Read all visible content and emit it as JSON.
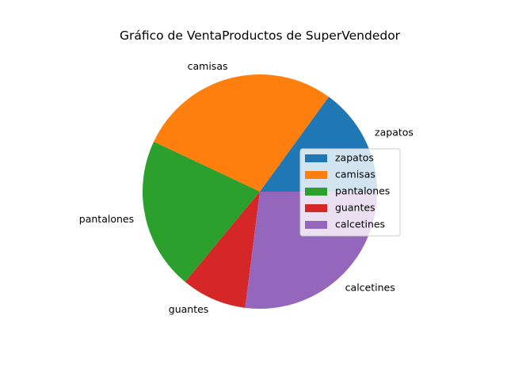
{
  "chart_data": {
    "type": "pie",
    "title": "Gráfico de VentaProductos de SuperVendedor",
    "categories": [
      "zapatos",
      "camisas",
      "pantalones",
      "guantes",
      "calcetines"
    ],
    "values": [
      15,
      28,
      21,
      9,
      27
    ],
    "units": "percent",
    "start_angle_deg": 0,
    "direction": "counterclockwise",
    "colors": [
      "#1f77b4",
      "#ff7f0e",
      "#2ca02c",
      "#d62728",
      "#9467bd"
    ],
    "legend_placement": "center-right"
  }
}
